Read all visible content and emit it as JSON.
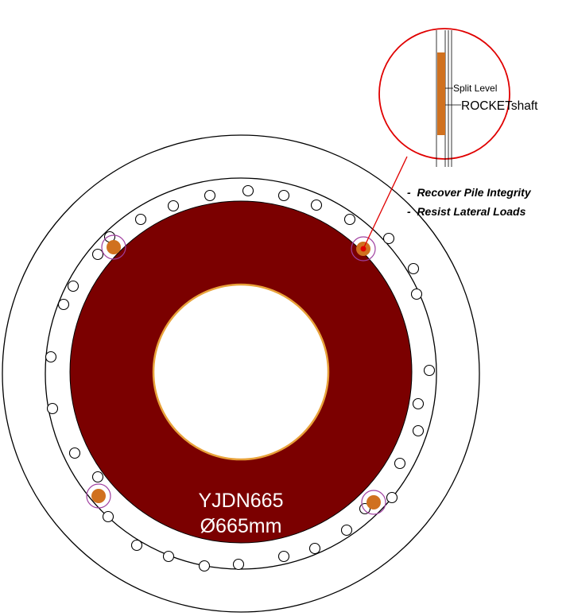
{
  "pile": {
    "model": "YJDN665",
    "diameter": "Ø665mm",
    "colors": {
      "concrete": "#7b0000",
      "core_edge": "#e8a23a",
      "rocket": "#d0711f",
      "outline": "#000000",
      "callout": "#e00000",
      "marker": "#a040a0"
    }
  },
  "callout": {
    "split_label": "Split Level",
    "rocket_label": "ROCKETshaft"
  },
  "benefits": [
    "-  Recover Pile Integrity",
    "-  Resist Lateral Loads"
  ]
}
